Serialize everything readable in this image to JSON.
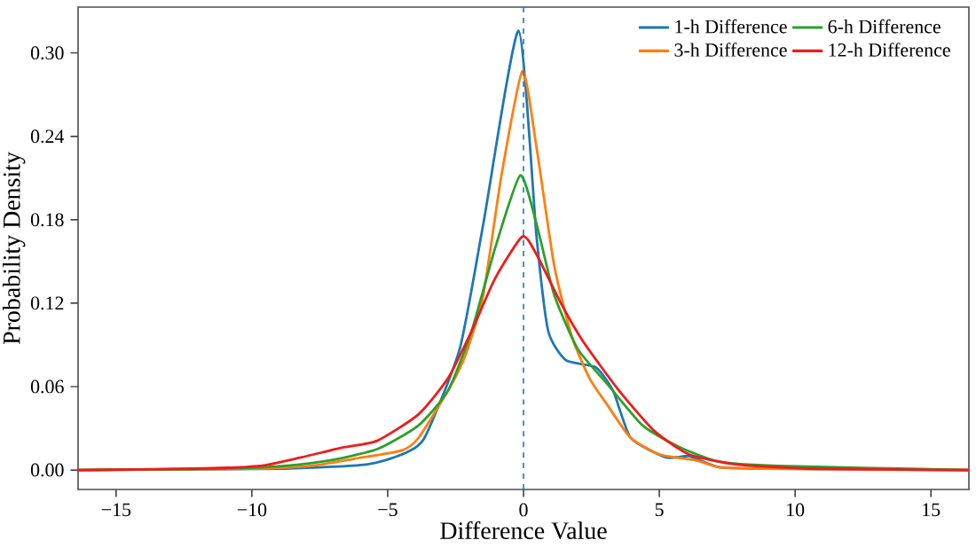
{
  "chart_data": {
    "type": "line",
    "xlabel": "Difference Value",
    "ylabel": "Probability Density",
    "xlim": [
      -16.4,
      16.4
    ],
    "ylim": [
      -0.014,
      0.333
    ],
    "xticks": [
      {
        "value": -15,
        "label": "−15"
      },
      {
        "value": -10,
        "label": "−10"
      },
      {
        "value": -5,
        "label": "−5"
      },
      0,
      5,
      10,
      15
    ],
    "yticks": [
      {
        "value": 0,
        "label": "0.00"
      },
      {
        "value": 0.06,
        "label": "0.06"
      },
      {
        "value": 0.12,
        "label": "0.12"
      },
      {
        "value": 0.18,
        "label": "0.18"
      },
      {
        "value": 0.24,
        "label": "0.24"
      },
      {
        "value": 0.3,
        "label": "0.30"
      }
    ],
    "grid": false,
    "legend": "top right",
    "line_style": "solid",
    "marker": "none",
    "ref_lines": [
      {
        "axis": "x",
        "value": 0,
        "color": "#1f77b4",
        "line_style": "dashed"
      }
    ],
    "series": [
      {
        "name": "1-h Difference",
        "color": "#1f77b4",
        "x": [
          -16.4,
          -8.8,
          -5.8,
          -4.5,
          -3.65,
          -2.35,
          -1.48,
          -0.18,
          0.48,
          0.91,
          1.56,
          2.65,
          3.3,
          3.95,
          5.26,
          6.1,
          7.2,
          9.0,
          16.4
        ],
        "values": [
          0,
          0.001,
          0.004,
          0.011,
          0.023,
          0.087,
          0.177,
          0.316,
          0.168,
          0.1,
          0.079,
          0.074,
          0.057,
          0.023,
          0.009,
          0.01,
          0.002,
          0.001,
          0
        ]
      },
      {
        "name": "3-h Difference",
        "color": "#ff7f0e",
        "x": [
          -16.4,
          -10,
          -7.8,
          -6.25,
          -4.5,
          -3.87,
          -2.78,
          -2.13,
          -1.48,
          -0.82,
          -0.04,
          0.48,
          1.13,
          1.78,
          2.43,
          3.08,
          3.95,
          5.04,
          6.34,
          7.2,
          9.0,
          16.4
        ],
        "values": [
          0,
          0.001,
          0.003,
          0.008,
          0.014,
          0.023,
          0.057,
          0.083,
          0.126,
          0.211,
          0.287,
          0.232,
          0.147,
          0.096,
          0.066,
          0.047,
          0.023,
          0.011,
          0.007,
          0.002,
          0.001,
          0
        ]
      },
      {
        "name": "6-h Difference",
        "color": "#2ca02c",
        "x": [
          -16.4,
          -11,
          -8.8,
          -7.12,
          -5.39,
          -3.87,
          -2.78,
          -1.91,
          -1.04,
          -0.12,
          0.48,
          1.13,
          2.0,
          3.08,
          4.39,
          5.69,
          7.2,
          9.4,
          16.4
        ],
        "values": [
          0,
          0.001,
          0.003,
          0.007,
          0.015,
          0.032,
          0.057,
          0.1,
          0.16,
          0.212,
          0.177,
          0.126,
          0.087,
          0.062,
          0.032,
          0.017,
          0.006,
          0.003,
          0
        ]
      },
      {
        "name": "12-h Difference",
        "color": "#ee1c1c",
        "x": [
          -16.4,
          -12.1,
          -9.7,
          -8.2,
          -6.69,
          -5.39,
          -3.87,
          -2.78,
          -1.91,
          -1.04,
          -0.04,
          0.48,
          1.35,
          2.21,
          3.52,
          4.82,
          6.12,
          7.86,
          10.5,
          16.4
        ],
        "values": [
          0,
          0.001,
          0.003,
          0.009,
          0.016,
          0.021,
          0.04,
          0.066,
          0.1,
          0.138,
          0.168,
          0.155,
          0.121,
          0.092,
          0.057,
          0.028,
          0.011,
          0.004,
          0.001,
          0
        ]
      }
    ]
  }
}
